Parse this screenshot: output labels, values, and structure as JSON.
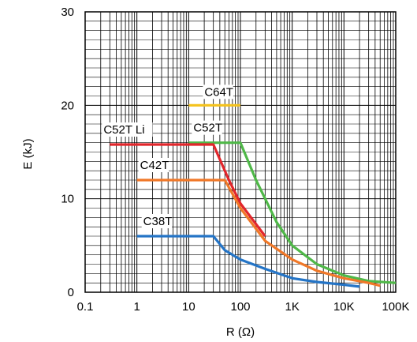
{
  "chart_data": {
    "type": "line",
    "xlabel": "R (Ω)",
    "ylabel": "E (kJ)",
    "x_scale": "log",
    "xlim": [
      0.1,
      100000
    ],
    "ylim": [
      0,
      30
    ],
    "grid": true,
    "x_ticks": [
      {
        "value": 0.1,
        "label": "0.1"
      },
      {
        "value": 1,
        "label": "1"
      },
      {
        "value": 10,
        "label": "10"
      },
      {
        "value": 100,
        "label": "100"
      },
      {
        "value": 1000,
        "label": "1K"
      },
      {
        "value": 10000,
        "label": "10K"
      },
      {
        "value": 100000,
        "label": "100K"
      }
    ],
    "y_ticks": [
      {
        "value": 0,
        "label": "0"
      },
      {
        "value": 10,
        "label": "10"
      },
      {
        "value": 20,
        "label": "20"
      },
      {
        "value": 30,
        "label": "30"
      }
    ],
    "series": [
      {
        "name": "C64T",
        "color": "#f5c21b",
        "points": [
          [
            10,
            20
          ],
          [
            100,
            20
          ]
        ]
      },
      {
        "name": "C52T",
        "color": "#4fb848",
        "points": [
          [
            10,
            16
          ],
          [
            100,
            16
          ],
          [
            200,
            12
          ],
          [
            500,
            7.5
          ],
          [
            1000,
            5
          ],
          [
            3000,
            3
          ],
          [
            10000,
            1.8
          ],
          [
            30000,
            1.2
          ],
          [
            100000,
            1.0
          ]
        ]
      },
      {
        "name": "C52T Li",
        "color": "#e2262b",
        "points": [
          [
            0.3,
            15.8
          ],
          [
            30,
            15.8
          ],
          [
            60,
            12
          ],
          [
            100,
            9.5
          ],
          [
            300,
            6
          ]
        ]
      },
      {
        "name": "C42T",
        "color": "#f07828",
        "points": [
          [
            1,
            12
          ],
          [
            50,
            12
          ],
          [
            100,
            9
          ],
          [
            300,
            5.5
          ],
          [
            1000,
            3.5
          ],
          [
            3000,
            2.3
          ],
          [
            10000,
            1.5
          ],
          [
            30000,
            1.0
          ],
          [
            50000,
            0.7
          ]
        ]
      },
      {
        "name": "C38T",
        "color": "#2474c6",
        "points": [
          [
            1,
            6
          ],
          [
            30,
            6
          ],
          [
            50,
            4.5
          ],
          [
            100,
            3.5
          ],
          [
            300,
            2.5
          ],
          [
            1000,
            1.5
          ],
          [
            3000,
            1.1
          ],
          [
            10000,
            0.8
          ],
          [
            20000,
            0.6
          ]
        ]
      }
    ]
  }
}
